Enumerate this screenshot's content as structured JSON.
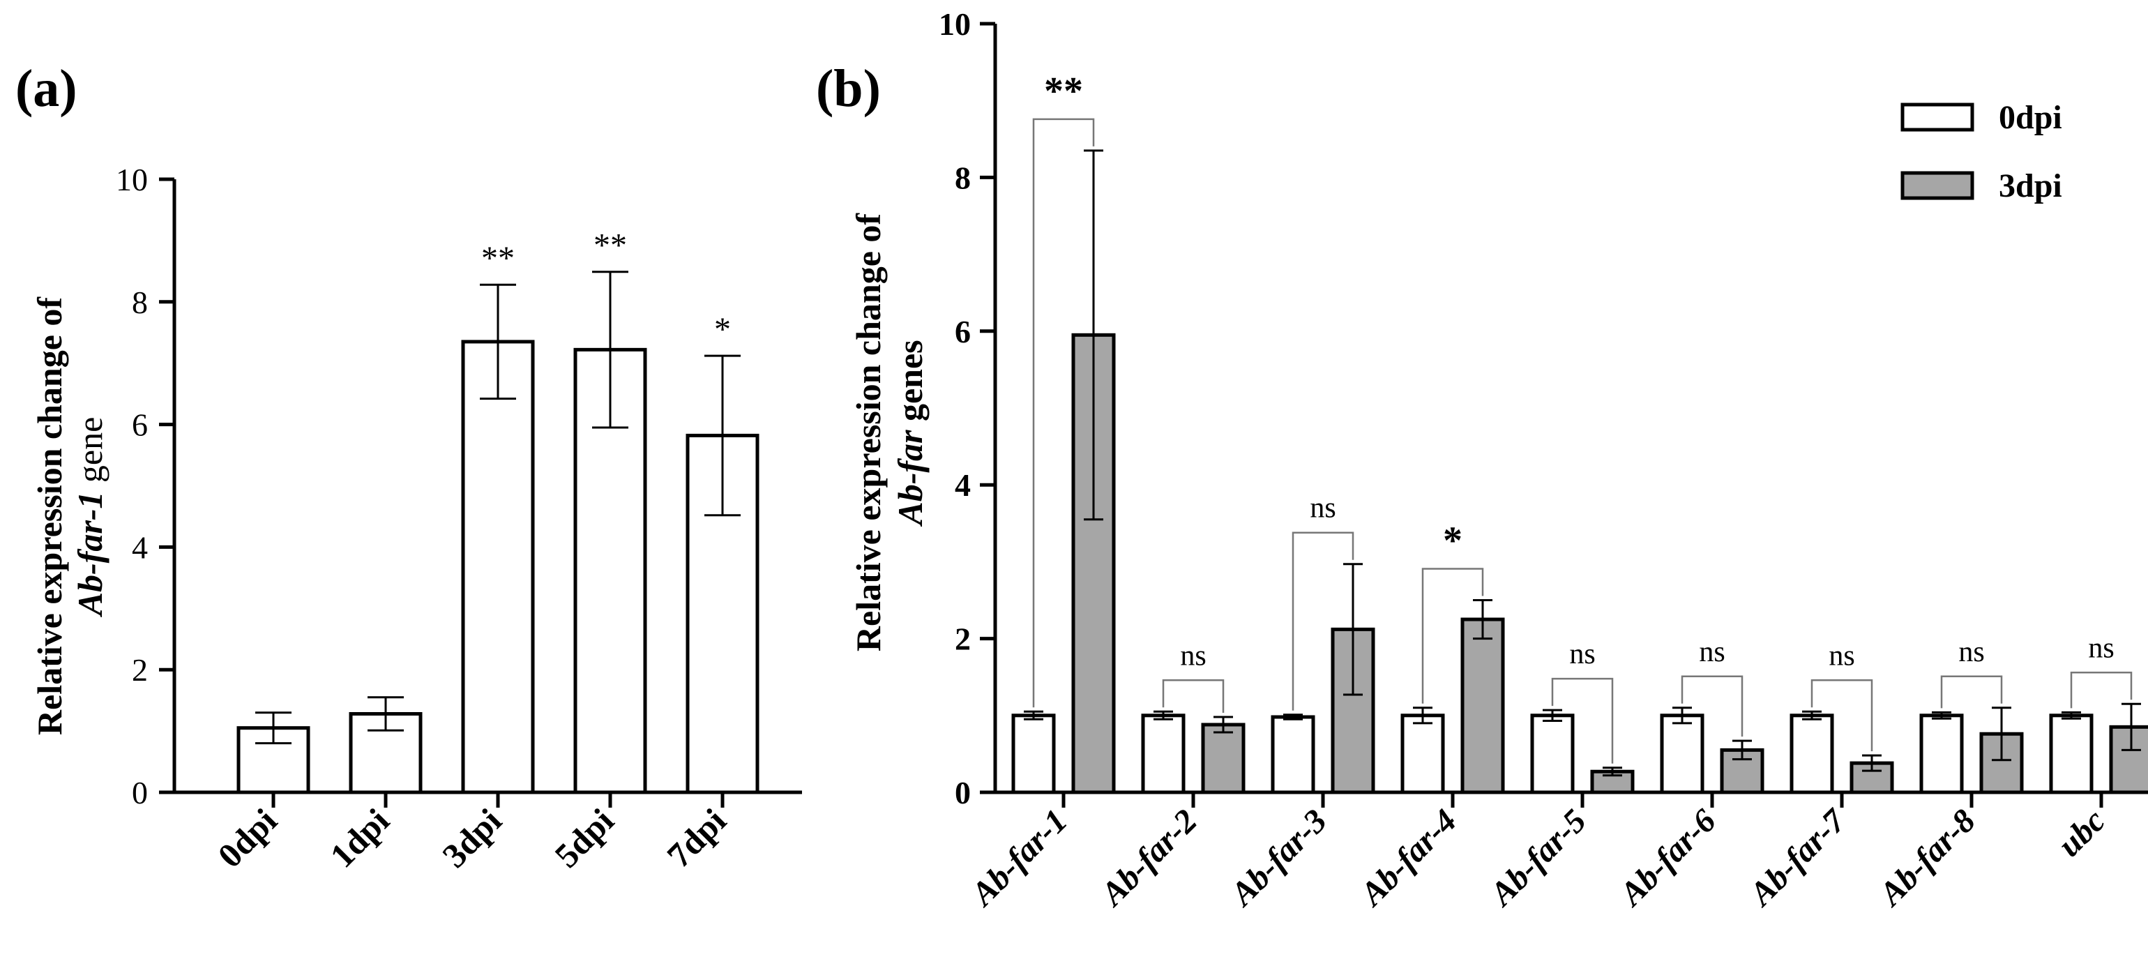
{
  "chart_data": [
    {
      "panel_label": "(a)",
      "type": "bar",
      "title": "",
      "xlabel": "",
      "ylabel_line1": "Relative expression change  of",
      "ylabel_line2_italic": "Ab-far-1",
      "ylabel_line2_rest": " gene",
      "ylim": [
        0,
        10
      ],
      "yticks": [
        "0",
        "2",
        "4",
        "6",
        "8",
        "10"
      ],
      "categories": [
        "0dpi",
        "1dpi",
        "3dpi",
        "5dpi",
        "7dpi"
      ],
      "values": [
        1.05,
        1.28,
        7.35,
        7.22,
        5.82
      ],
      "errors": [
        0.25,
        0.27,
        0.93,
        1.27,
        1.3
      ],
      "significance": [
        "",
        "",
        "**",
        "**",
        "*"
      ],
      "bar_color": "#ffffff"
    },
    {
      "panel_label": "(b)",
      "type": "bar",
      "title": "",
      "xlabel": "",
      "ylabel_line1": "Relative expression change  of",
      "ylabel_line2_italic": "Ab-far",
      "ylabel_line2_rest": " genes",
      "ylim": [
        0,
        10
      ],
      "yticks": [
        "0",
        "2",
        "4",
        "6",
        "8",
        "10"
      ],
      "categories": [
        "Ab-far-1",
        "Ab-far-2",
        "Ab-far-3",
        "Ab-far-4",
        "Ab-far-5",
        "Ab-far-6",
        "Ab-far-7",
        "Ab-far-8",
        "ubc"
      ],
      "legend_position": "top-right",
      "series": [
        {
          "name": "0dpi",
          "color": "#ffffff",
          "values": [
            1.0,
            1.0,
            0.98,
            1.0,
            1.0,
            1.0,
            1.0,
            1.0,
            1.0
          ],
          "errors": [
            0.05,
            0.05,
            0.03,
            0.1,
            0.07,
            0.1,
            0.05,
            0.04,
            0.04
          ]
        },
        {
          "name": "3dpi",
          "color": "#a6a6a6",
          "values": [
            5.95,
            0.88,
            2.12,
            2.25,
            0.27,
            0.55,
            0.38,
            0.76,
            0.85
          ],
          "errors": [
            2.4,
            0.1,
            0.85,
            0.25,
            0.05,
            0.12,
            0.1,
            0.34,
            0.3
          ]
        }
      ],
      "significance": [
        "**",
        "ns",
        "ns",
        "*",
        "ns",
        "ns",
        "ns",
        "ns",
        "ns"
      ]
    }
  ]
}
